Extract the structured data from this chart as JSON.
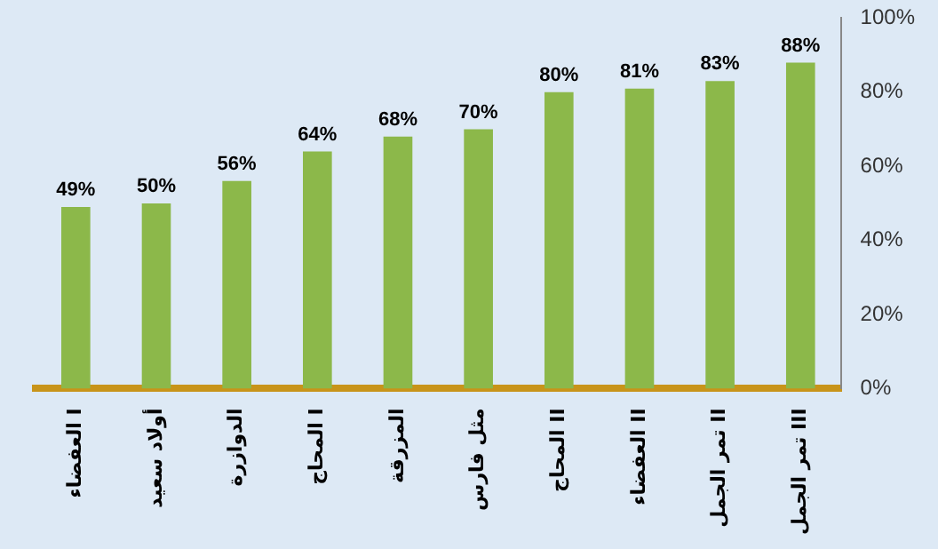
{
  "chart_data": {
    "type": "bar",
    "categories": [
      "العفضاء I",
      "أولاد سعيد",
      "الدوازرة",
      "المحاج I",
      "المزرقة",
      "مثل فارس",
      "المحاج II",
      "العفضاء II",
      "تمر الجمل II",
      "تمر الجمل III"
    ],
    "values": [
      49,
      50,
      56,
      64,
      68,
      70,
      80,
      81,
      83,
      88
    ],
    "value_labels": [
      "49%",
      "50%",
      "56%",
      "64%",
      "68%",
      "70%",
      "80%",
      "81%",
      "83%",
      "88%"
    ],
    "color": "#8cb84a",
    "ylim": [
      0,
      100
    ],
    "yticks": [
      {
        "value": 0,
        "label": "0%"
      },
      {
        "value": 20,
        "label": "20%"
      },
      {
        "value": 40,
        "label": "40%"
      },
      {
        "value": 60,
        "label": "60%"
      },
      {
        "value": 80,
        "label": "80%"
      },
      {
        "value": 100,
        "label": "100%"
      }
    ],
    "grid": false,
    "legend": false
  }
}
